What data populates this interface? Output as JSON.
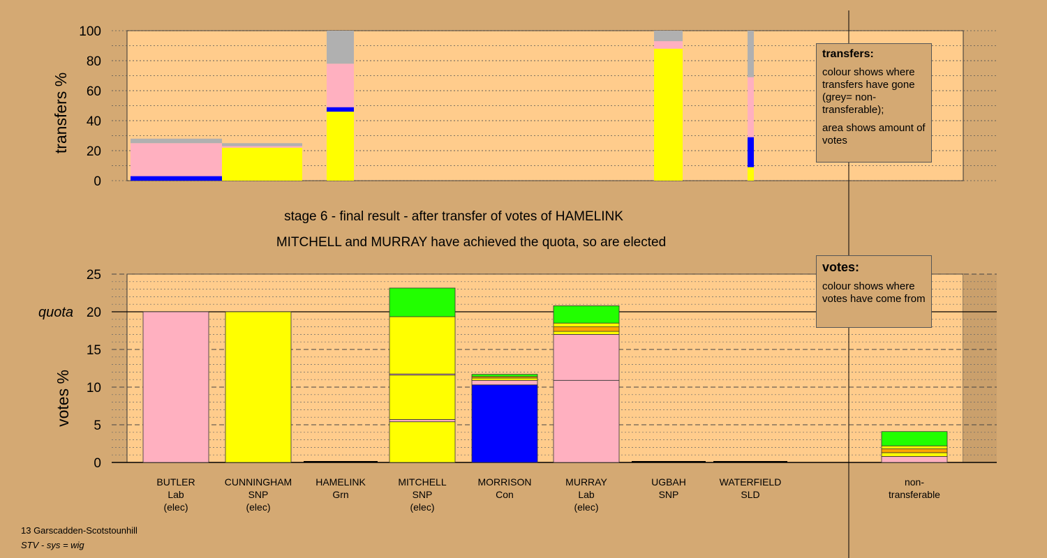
{
  "stage_title": "stage 6 - final result - after transfer of votes of HAMELINK",
  "stage_subtitle": "MITCHELL and MURRAY have achieved the quota, so are elected",
  "footer": {
    "line1": "13 Garscadden-Scotstounhill",
    "line2": "STV - sys = wig"
  },
  "legend_transfers": {
    "title": "transfers:",
    "text1": "colour shows where transfers have gone (grey= non-transferable);",
    "text2": "area shows amount of votes"
  },
  "legend_votes": {
    "title": "votes:",
    "text1": "colour shows where votes have come from"
  },
  "colors": {
    "background": "#d4a973",
    "plot_bg": "#ffcc8c",
    "Lab": "#ffb0c0",
    "SNP": "#ffff00",
    "Con": "#0000ff",
    "Grn": "#22ff00",
    "SLD": "#ffa500",
    "nontransferable": "#b0b0b0"
  },
  "chart_data": [
    {
      "type": "bar",
      "stacked": true,
      "ylabel": "transfers %",
      "ylim": [
        0,
        100
      ],
      "yticks": [
        0,
        20,
        40,
        60,
        80,
        100
      ],
      "note": "variable-width stacked bars; width shows amount of votes transferred",
      "bars": [
        {
          "segments": [
            {
              "party": "Con",
              "value": 3
            },
            {
              "party": "Lab",
              "value": 22
            },
            {
              "party": "nontransferable",
              "value": 3
            }
          ],
          "width_share": 1.0
        },
        {
          "segments": [
            {
              "party": "SNP",
              "value": 22
            },
            {
              "party": "Lab",
              "value": 1
            },
            {
              "party": "nontransferable",
              "value": 2
            }
          ],
          "width_share": 0.88
        },
        {
          "segments": [
            {
              "party": "SNP",
              "value": 46
            },
            {
              "party": "Con",
              "value": 3
            },
            {
              "party": "Lab",
              "value": 29
            },
            {
              "party": "nontransferable",
              "value": 22
            }
          ],
          "width_share": 0.29
        },
        {
          "segments": [
            {
              "party": "SNP",
              "value": 88
            },
            {
              "party": "Lab",
              "value": 5
            },
            {
              "party": "nontransferable",
              "value": 7
            }
          ],
          "width_share": 0.32
        },
        {
          "segments": [
            {
              "party": "SNP",
              "value": 9
            },
            {
              "party": "Con",
              "value": 20
            },
            {
              "party": "Lab",
              "value": 40
            },
            {
              "party": "nontransferable",
              "value": 31
            }
          ],
          "width_share": 0.06
        }
      ]
    },
    {
      "type": "bar",
      "stacked": true,
      "ylabel": "votes %",
      "ylim": [
        0,
        25
      ],
      "yticks": [
        0,
        5,
        10,
        15,
        20,
        25
      ],
      "quota": 20,
      "quota_label": "quota",
      "candidates": [
        {
          "name": "BUTLER",
          "party": "Lab",
          "status": "(elec)",
          "segments": [
            {
              "party": "Lab",
              "value": 20
            }
          ]
        },
        {
          "name": "CUNNINGHAM",
          "party": "SNP",
          "status": "(elec)",
          "segments": [
            {
              "party": "SNP",
              "value": 20
            }
          ]
        },
        {
          "name": "HAMELINK",
          "party": "Grn",
          "status": "",
          "segments": []
        },
        {
          "name": "MITCHELL",
          "party": "SNP",
          "status": "(elec)",
          "segments": [
            {
              "party": "SNP",
              "value": 5.4
            },
            {
              "party": "Lab",
              "value": 0.3
            },
            {
              "party": "SNP",
              "value": 5.9
            },
            {
              "party": "Lab",
              "value": 0.15
            },
            {
              "party": "SNP",
              "value": 7.6
            },
            {
              "party": "Grn",
              "value": 3.8
            }
          ]
        },
        {
          "name": "MORRISON",
          "party": "Con",
          "status": "",
          "segments": [
            {
              "party": "Con",
              "value": 10.3
            },
            {
              "party": "Lab",
              "value": 0.6
            },
            {
              "party": "SNP",
              "value": 0.3
            },
            {
              "party": "SLD",
              "value": 0.2
            },
            {
              "party": "Grn",
              "value": 0.3
            }
          ]
        },
        {
          "name": "MURRAY",
          "party": "Lab",
          "status": "(elec)",
          "segments": [
            {
              "party": "Lab",
              "value": 10.9
            },
            {
              "party": "Lab",
              "value": 6.1
            },
            {
              "party": "SNP",
              "value": 0.4
            },
            {
              "party": "SLD",
              "value": 0.6
            },
            {
              "party": "SNP",
              "value": 0.5
            },
            {
              "party": "Grn",
              "value": 2.3
            }
          ]
        },
        {
          "name": "UGBAH",
          "party": "SNP",
          "status": "",
          "segments": []
        },
        {
          "name": "WATERFIELD",
          "party": "SLD",
          "status": "",
          "segments": []
        },
        {
          "name": "non-",
          "party": "transferable",
          "status": "",
          "segments": [
            {
              "party": "Lab",
              "value": 0.8
            },
            {
              "party": "SNP",
              "value": 0.5
            },
            {
              "party": "SLD",
              "value": 0.5
            },
            {
              "party": "SNP",
              "value": 0.4
            },
            {
              "party": "Grn",
              "value": 1.9
            }
          ]
        }
      ]
    }
  ]
}
